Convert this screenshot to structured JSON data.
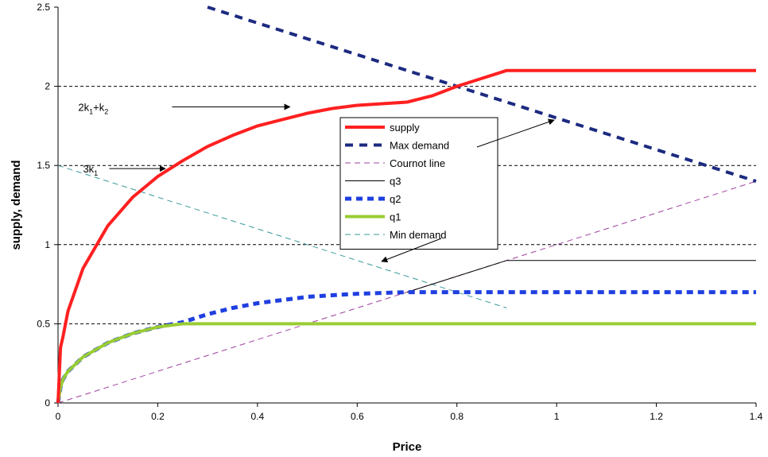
{
  "chart_data": {
    "type": "line",
    "title": "",
    "xlabel": "Price",
    "ylabel": "supply, demand",
    "xlim": [
      0,
      1.4
    ],
    "ylim": [
      0,
      2.5
    ],
    "xticks": [
      "0",
      "0.2",
      "0.4",
      "0.6",
      "0.8",
      "1",
      "1.2",
      "1.4"
    ],
    "yticks": [
      "0",
      "0.5",
      "1",
      "1.5",
      "2",
      "2.5"
    ],
    "gridlines_y": [
      0.5,
      1,
      1.5,
      2
    ],
    "grid": "horizontal dashed",
    "legend_position": "center-right",
    "series": [
      {
        "name": "supply",
        "color": "#ff2020",
        "style": "solid-thick",
        "x": [
          0,
          0.005,
          0.01,
          0.02,
          0.05,
          0.1,
          0.15,
          0.2,
          0.25,
          0.3,
          0.35,
          0.4,
          0.45,
          0.5,
          0.55,
          0.6,
          0.65,
          0.7,
          0.75,
          0.8,
          0.85,
          0.9,
          0.95,
          1.0,
          1.1,
          1.2,
          1.3,
          1.4
        ],
        "y": [
          0,
          0.35,
          0.42,
          0.58,
          0.85,
          1.12,
          1.3,
          1.43,
          1.53,
          1.62,
          1.69,
          1.75,
          1.79,
          1.83,
          1.86,
          1.88,
          1.89,
          1.9,
          1.94,
          2.0,
          2.05,
          2.1,
          2.1,
          2.1,
          2.1,
          2.1,
          2.1,
          2.1
        ]
      },
      {
        "name": "Max demand",
        "color": "#1c2a80",
        "style": "dashed-thick",
        "x": [
          0.3,
          1.4
        ],
        "y": [
          2.5,
          1.4
        ]
      },
      {
        "name": "Cournot line",
        "color": "#a040a0",
        "style": "dashed-thin",
        "x": [
          0,
          1.4
        ],
        "y": [
          0,
          1.4
        ]
      },
      {
        "name": "q3",
        "color": "#000000",
        "style": "solid-thin",
        "x": [
          0.7,
          0.9,
          1.4
        ],
        "y": [
          0.7,
          0.9,
          0.9
        ]
      },
      {
        "name": "q2",
        "color": "#1f3fe0",
        "style": "dotted-thick",
        "x": [
          0,
          0.005,
          0.01,
          0.02,
          0.05,
          0.1,
          0.15,
          0.2,
          0.25,
          0.3,
          0.35,
          0.4,
          0.45,
          0.5,
          0.55,
          0.6,
          0.65,
          0.7,
          0.8,
          0.9,
          1.0,
          1.1,
          1.2,
          1.3,
          1.4
        ],
        "y": [
          0,
          0.1,
          0.15,
          0.2,
          0.29,
          0.38,
          0.44,
          0.48,
          0.51,
          0.56,
          0.6,
          0.63,
          0.65,
          0.67,
          0.68,
          0.69,
          0.695,
          0.7,
          0.7,
          0.7,
          0.7,
          0.7,
          0.7,
          0.7,
          0.7
        ]
      },
      {
        "name": "q1",
        "color": "#99cc33",
        "style": "solid-thick",
        "x": [
          0,
          0.005,
          0.01,
          0.02,
          0.05,
          0.1,
          0.15,
          0.2,
          0.25,
          0.3,
          0.5,
          0.8,
          0.9,
          1.0,
          1.2,
          1.4
        ],
        "y": [
          0,
          0.1,
          0.15,
          0.2,
          0.29,
          0.38,
          0.44,
          0.48,
          0.5,
          0.5,
          0.5,
          0.5,
          0.5,
          0.5,
          0.5,
          0.5
        ]
      },
      {
        "name": "Min demand",
        "color": "#3a9a9a",
        "style": "dashed-thin",
        "x": [
          0,
          0.9
        ],
        "y": [
          1.5,
          0.6
        ]
      }
    ],
    "annotations": [
      {
        "text_main": "2k",
        "sub1": "1",
        "text_mid": "+k",
        "sub2": "2",
        "arrow_from": [
          0.2,
          1.87
        ],
        "arrow_to": [
          0.47,
          1.87
        ]
      },
      {
        "text_main": "3k",
        "sub1": "1",
        "text_mid": "",
        "sub2": "",
        "arrow_from": [
          0.09,
          1.48
        ],
        "arrow_to": [
          0.22,
          1.48
        ]
      }
    ]
  }
}
